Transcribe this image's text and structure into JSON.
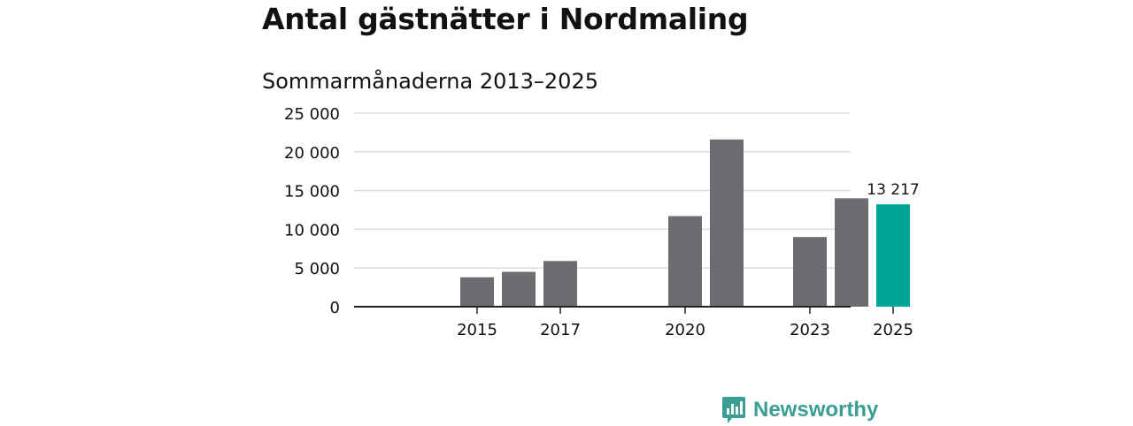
{
  "header": {
    "title": "Antal gästnätter i Nordmaling",
    "subtitle": "Sommarmånaderna 2013–2025"
  },
  "brand": {
    "name": "Newsworthy",
    "color": "#3a9e95"
  },
  "chart_data": {
    "type": "bar",
    "title": "Antal gästnätter i Nordmaling",
    "subtitle": "Sommarmånaderna 2013–2025",
    "xlabel": "",
    "ylabel": "",
    "categories": [
      "2013",
      "2014",
      "2015",
      "2016",
      "2017",
      "2018",
      "2019",
      "2020",
      "2021",
      "2022",
      "2023",
      "2024",
      "2025"
    ],
    "values": [
      null,
      null,
      3800,
      4500,
      5900,
      null,
      null,
      11700,
      21600,
      null,
      9000,
      14000,
      13217
    ],
    "highlight": {
      "category": "2025",
      "value": 13217,
      "label": "13 217",
      "color": "#00a398"
    },
    "bar_color": "#6d6c71",
    "ylim": [
      0,
      25000
    ],
    "yticks": [
      0,
      5000,
      10000,
      15000,
      20000,
      25000
    ],
    "ytick_labels": [
      "0",
      "5 000",
      "10 000",
      "15 000",
      "20 000",
      "25 000"
    ],
    "xtick_labels": [
      "2015",
      "2017",
      "2020",
      "2023",
      "2025"
    ],
    "grid": true,
    "legend": "none"
  }
}
